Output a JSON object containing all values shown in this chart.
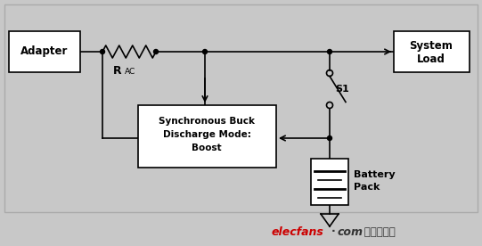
{
  "bg_color": "#c8c8c8",
  "box_color": "#ffffff",
  "line_color": "#000000",
  "adapter_text": "Adapter",
  "system_load_text1": "System",
  "system_load_text2": "Load",
  "buck_text1": "Synchronous Buck",
  "buck_text2": "Discharge Mode:",
  "buck_text3": "Boost",
  "battery_text1": "Battery",
  "battery_text2": "Pack",
  "s1_text": "S1",
  "rac_text_main": "R",
  "rac_text_sub": "AC",
  "watermark_r": "elecfans",
  "watermark_b1": "·",
  "watermark_b2": "com",
  "watermark_cn": " 电子发烧友",
  "figsize": [
    5.41,
    2.76
  ],
  "dpi": 100
}
